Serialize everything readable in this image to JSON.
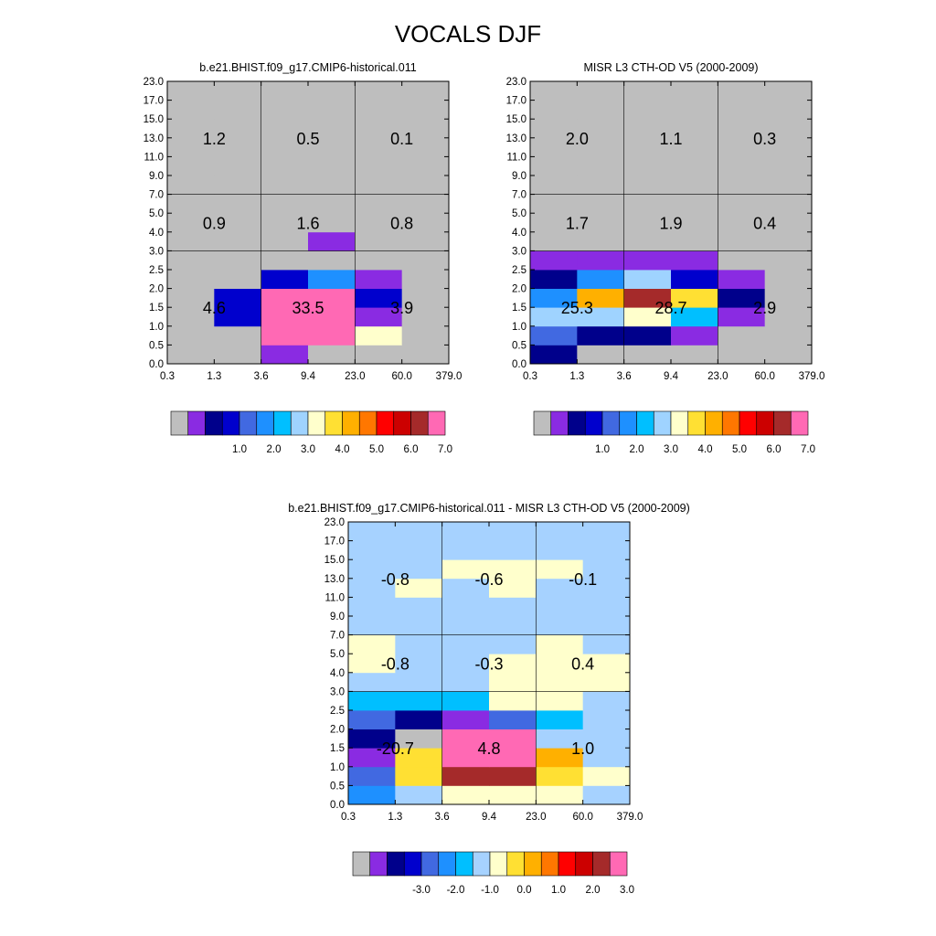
{
  "figure_title": "VOCALS DJF",
  "palettes": {
    "abs": [
      "#bebebe",
      "#8a2be2",
      "#00008b",
      "#0000cd",
      "#4169e1",
      "#1e90ff",
      "#00bfff",
      "#9fd3ff",
      "#ffffcc",
      "#ffe033",
      "#ffb000",
      "#ff7700",
      "#ff0000",
      "#cc0000",
      "#a52a2a",
      "#ff69b4"
    ],
    "diff": [
      "#bebebe",
      "#8a2be2",
      "#00008b",
      "#0000cd",
      "#4169e1",
      "#1e90ff",
      "#00bfff",
      "#a6d2ff",
      "#ffffcc",
      "#ffe033",
      "#ffb000",
      "#ff7700",
      "#ff0000",
      "#cc0000",
      "#a52a2a",
      "#ff69b4"
    ]
  },
  "chart_data": [
    {
      "type": "heatmap",
      "title": "b.e21.BHIST.f09_g17.CMIP6-historical.011",
      "x_ticks": [
        "0.3",
        "1.3",
        "3.6",
        "9.4",
        "23.0",
        "60.0",
        "379.0"
      ],
      "y_ticks": [
        "0.0",
        "0.5",
        "1.0",
        "1.5",
        "2.0",
        "2.5",
        "3.0",
        "4.0",
        "5.0",
        "7.0",
        "9.0",
        "11.0",
        "13.0",
        "15.0",
        "17.0",
        "23.0"
      ],
      "x_groups": [
        [
          0,
          2
        ],
        [
          2,
          4
        ],
        [
          4,
          6
        ]
      ],
      "y_groups": [
        [
          0,
          6
        ],
        [
          6,
          9
        ],
        [
          9,
          15
        ]
      ],
      "background_index": 0,
      "grid": [
        [
          0,
          0,
          1,
          0,
          0,
          0
        ],
        [
          0,
          0,
          15,
          15,
          8,
          0
        ],
        [
          0,
          3,
          15,
          15,
          1,
          0
        ],
        [
          0,
          3,
          15,
          15,
          3,
          0
        ],
        [
          0,
          0,
          3,
          5,
          1,
          0
        ],
        [
          0,
          0,
          0,
          0,
          0,
          0
        ],
        [
          0,
          0,
          0,
          1,
          0,
          0
        ],
        [
          0,
          0,
          0,
          0,
          0,
          0
        ],
        [
          0,
          0,
          0,
          0,
          0,
          0
        ],
        [
          0,
          0,
          0,
          0,
          0,
          0
        ],
        [
          0,
          0,
          0,
          0,
          0,
          0
        ],
        [
          0,
          0,
          0,
          0,
          0,
          0
        ],
        [
          0,
          0,
          0,
          0,
          0,
          0
        ],
        [
          0,
          0,
          0,
          0,
          0,
          0
        ],
        [
          0,
          0,
          0,
          0,
          0,
          0
        ]
      ],
      "group_values": [
        [
          "4.6",
          "33.5",
          "3.9"
        ],
        [
          "0.9",
          "1.6",
          "0.8"
        ],
        [
          "1.2",
          "0.5",
          "0.1"
        ]
      ],
      "palette": "abs",
      "colorbar_labels": [
        "1.0",
        "2.0",
        "3.0",
        "4.0",
        "5.0",
        "6.0",
        "7.0"
      ]
    },
    {
      "type": "heatmap",
      "title": "MISR L3 CTH-OD V5 (2000-2009)",
      "x_ticks": [
        "0.3",
        "1.3",
        "3.6",
        "9.4",
        "23.0",
        "60.0",
        "379.0"
      ],
      "y_ticks": [
        "0.0",
        "0.5",
        "1.0",
        "1.5",
        "2.0",
        "2.5",
        "3.0",
        "4.0",
        "5.0",
        "7.0",
        "9.0",
        "11.0",
        "13.0",
        "15.0",
        "17.0",
        "23.0"
      ],
      "x_groups": [
        [
          0,
          2
        ],
        [
          2,
          4
        ],
        [
          4,
          6
        ]
      ],
      "y_groups": [
        [
          0,
          6
        ],
        [
          6,
          9
        ],
        [
          9,
          15
        ]
      ],
      "background_index": 0,
      "grid": [
        [
          2,
          0,
          0,
          0,
          0,
          0
        ],
        [
          4,
          2,
          2,
          1,
          0,
          0
        ],
        [
          7,
          7,
          8,
          6,
          1,
          0
        ],
        [
          5,
          10,
          14,
          9,
          2,
          0
        ],
        [
          2,
          5,
          7,
          3,
          1,
          0
        ],
        [
          1,
          1,
          1,
          1,
          0,
          0
        ],
        [
          0,
          0,
          0,
          0,
          0,
          0
        ],
        [
          0,
          0,
          0,
          0,
          0,
          0
        ],
        [
          0,
          0,
          0,
          0,
          0,
          0
        ],
        [
          0,
          0,
          0,
          0,
          0,
          0
        ],
        [
          0,
          0,
          0,
          0,
          0,
          0
        ],
        [
          0,
          0,
          0,
          0,
          0,
          0
        ],
        [
          0,
          0,
          0,
          0,
          0,
          0
        ],
        [
          0,
          0,
          0,
          0,
          0,
          0
        ],
        [
          0,
          0,
          0,
          0,
          0,
          0
        ]
      ],
      "group_values": [
        [
          "25.3",
          "28.7",
          "2.9"
        ],
        [
          "1.7",
          "1.9",
          "0.4"
        ],
        [
          "2.0",
          "1.1",
          "0.3"
        ]
      ],
      "palette": "abs",
      "colorbar_labels": [
        "1.0",
        "2.0",
        "3.0",
        "4.0",
        "5.0",
        "6.0",
        "7.0"
      ]
    },
    {
      "type": "heatmap",
      "title": "b.e21.BHIST.f09_g17.CMIP6-historical.011 - MISR L3 CTH-OD V5 (2000-2009)",
      "x_ticks": [
        "0.3",
        "1.3",
        "3.6",
        "9.4",
        "23.0",
        "60.0",
        "379.0"
      ],
      "y_ticks": [
        "0.0",
        "0.5",
        "1.0",
        "1.5",
        "2.0",
        "2.5",
        "3.0",
        "4.0",
        "5.0",
        "7.0",
        "9.0",
        "11.0",
        "13.0",
        "15.0",
        "17.0",
        "23.0"
      ],
      "x_groups": [
        [
          0,
          2
        ],
        [
          2,
          4
        ],
        [
          4,
          6
        ]
      ],
      "y_groups": [
        [
          0,
          6
        ],
        [
          6,
          9
        ],
        [
          9,
          15
        ]
      ],
      "grid": [
        [
          5,
          7,
          8,
          8,
          8,
          7
        ],
        [
          4,
          9,
          14,
          14,
          9,
          8
        ],
        [
          1,
          9,
          15,
          15,
          10,
          7
        ],
        [
          2,
          0,
          15,
          15,
          7,
          7
        ],
        [
          4,
          2,
          1,
          4,
          6,
          7
        ],
        [
          6,
          6,
          6,
          8,
          8,
          7
        ],
        [
          7,
          7,
          7,
          8,
          8,
          8
        ],
        [
          8,
          7,
          7,
          8,
          8,
          8
        ],
        [
          8,
          7,
          7,
          7,
          8,
          7
        ],
        [
          7,
          7,
          7,
          7,
          7,
          7
        ],
        [
          7,
          7,
          7,
          7,
          7,
          7
        ],
        [
          7,
          8,
          7,
          8,
          7,
          7
        ],
        [
          7,
          7,
          8,
          8,
          8,
          7
        ],
        [
          7,
          7,
          7,
          7,
          7,
          7
        ],
        [
          7,
          7,
          7,
          7,
          7,
          7
        ]
      ],
      "group_values": [
        [
          "-20.7",
          "4.8",
          "1.0"
        ],
        [
          "-0.8",
          "-0.3",
          "0.4"
        ],
        [
          "-0.8",
          "-0.6",
          "-0.1"
        ]
      ],
      "palette": "diff",
      "colorbar_labels": [
        "-3.0",
        "-2.0",
        "-1.0",
        "0.0",
        "1.0",
        "2.0",
        "3.0"
      ]
    }
  ]
}
